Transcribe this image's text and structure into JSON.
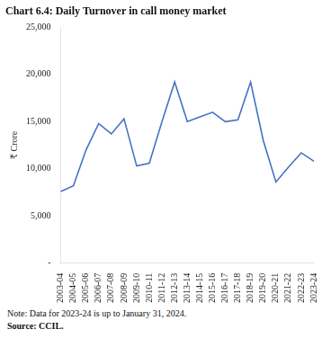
{
  "chart_data": {
    "type": "line",
    "title": "Chart 6.4: Daily Turnover in call money market",
    "ylabel": "₹ Crore",
    "annotations": [
      "Note: Data for 2023-24 is up to January 31, 2024.",
      "Source: CCIL."
    ],
    "categories": [
      "2003-04",
      "2004-05",
      "2005-06",
      "2006-07",
      "2007-08",
      "2008-09",
      "2009-10",
      "2010-11",
      "2011-12",
      "2012-13",
      "2013-14",
      "2014-15",
      "2015-16",
      "2016-17",
      "2017-18",
      "2018-19",
      "2019-20",
      "2020-21",
      "2021-22",
      "2022-23",
      "2023-24"
    ],
    "values": [
      7600,
      8200,
      12000,
      14800,
      13700,
      15300,
      10300,
      10600,
      15000,
      19200,
      15000,
      15500,
      16000,
      15000,
      15200,
      19200,
      13000,
      8600,
      10200,
      11700,
      10800
    ],
    "color": "#4472C4",
    "ylim": [
      0,
      25000
    ],
    "yticks": [
      {
        "value": 0,
        "label": "-"
      },
      {
        "value": 5000,
        "label": "5,000"
      },
      {
        "value": 10000,
        "label": "10,000"
      },
      {
        "value": 15000,
        "label": "15,000"
      },
      {
        "value": 20000,
        "label": "20,000"
      },
      {
        "value": 25000,
        "label": "25,000"
      }
    ],
    "grid": false
  }
}
